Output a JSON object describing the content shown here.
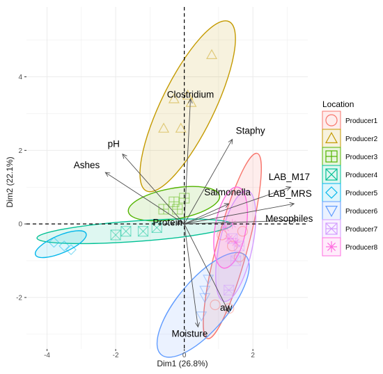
{
  "chart_data": {
    "type": "scatter",
    "subtype": "pca-biplot",
    "title": "",
    "xlabel": "Dim1 (26.8%)",
    "ylabel": "Dim2 (22.1%)",
    "xlim": [
      -4.6,
      3.6
    ],
    "ylim": [
      -3.4,
      5.9
    ],
    "x_ticks": [
      -4,
      -2,
      0,
      2
    ],
    "y_ticks": [
      -2,
      0,
      2,
      4
    ],
    "grid": true,
    "legend": {
      "title": "Location",
      "placement": "right",
      "entries": [
        {
          "name": "Producer1",
          "color": "#F8766D",
          "shape": "circle"
        },
        {
          "name": "Producer2",
          "color": "#C49A00",
          "shape": "triangle"
        },
        {
          "name": "Producer3",
          "color": "#53B400",
          "shape": "square-plus"
        },
        {
          "name": "Producer4",
          "color": "#00C094",
          "shape": "square-x"
        },
        {
          "name": "Producer5",
          "color": "#00B6EB",
          "shape": "diamond"
        },
        {
          "name": "Producer6",
          "color": "#619CFF",
          "shape": "triangle-down"
        },
        {
          "name": "Producer7",
          "color": "#D39CFF",
          "shape": "square-cross"
        },
        {
          "name": "Producer8",
          "color": "#FF6DE0",
          "shape": "asterisk"
        }
      ]
    },
    "variables": [
      {
        "name": "Clostridium",
        "x": 0.18,
        "y": 3.4
      },
      {
        "name": "Staphy",
        "x": 1.4,
        "y": 2.3
      },
      {
        "name": "pH",
        "x": -1.8,
        "y": 1.9
      },
      {
        "name": "Ashes",
        "x": -2.3,
        "y": 1.4
      },
      {
        "name": "Salmonella",
        "x": 1.3,
        "y": 0.55
      },
      {
        "name": "LAB_M17",
        "x": 3.1,
        "y": 1.0
      },
      {
        "name": "LAB_MRS",
        "x": 3.2,
        "y": 0.55
      },
      {
        "name": "Mesophiles",
        "x": 3.3,
        "y": 0.1
      },
      {
        "name": "Protein",
        "x": -0.2,
        "y": 0.05
      },
      {
        "name": "aw",
        "x": 1.3,
        "y": -2.4
      },
      {
        "name": "Moisture",
        "x": 0.4,
        "y": -2.8
      }
    ],
    "groups": [
      {
        "name": "Producer1",
        "cx": 1.4,
        "cy": -0.6,
        "rx": 2.8,
        "ry": 0.42,
        "angle": 75,
        "points": [
          [
            1.1,
            -0.3
          ],
          [
            1.4,
            -0.6
          ],
          [
            1.6,
            -0.9
          ],
          [
            0.9,
            -2.2
          ],
          [
            1.3,
            -2.3
          ],
          [
            1.7,
            -0.2
          ]
        ]
      },
      {
        "name": "Producer2",
        "cx": 0.1,
        "cy": 3.2,
        "rx": 2.75,
        "ry": 0.72,
        "angle": 64,
        "points": [
          [
            0.8,
            4.6
          ],
          [
            -0.3,
            3.4
          ],
          [
            0.1,
            3.5
          ],
          [
            0.2,
            3.3
          ],
          [
            -0.6,
            2.6
          ],
          [
            -0.1,
            2.6
          ]
        ]
      },
      {
        "name": "Producer3",
        "cx": -0.3,
        "cy": 0.55,
        "rx": 1.35,
        "ry": 0.42,
        "angle": 10,
        "points": [
          [
            -0.6,
            0.4
          ],
          [
            -0.3,
            0.6
          ],
          [
            0.0,
            0.7
          ],
          [
            -0.2,
            0.4
          ]
        ]
      },
      {
        "name": "Producer4",
        "cx": -1.45,
        "cy": -0.2,
        "rx": 2.85,
        "ry": 0.28,
        "angle": 4,
        "points": [
          [
            -1.7,
            -0.2
          ],
          [
            -1.2,
            -0.2
          ],
          [
            -0.8,
            -0.1
          ],
          [
            -2.0,
            -0.3
          ]
        ]
      },
      {
        "name": "Producer5",
        "cx": -3.6,
        "cy": -0.55,
        "rx": 0.8,
        "ry": 0.24,
        "angle": 23,
        "points": [
          [
            -3.8,
            -0.5
          ],
          [
            -3.5,
            -0.6
          ],
          [
            -3.3,
            -0.7
          ]
        ]
      },
      {
        "name": "Producer6",
        "cx": 0.55,
        "cy": -2.2,
        "rx": 1.9,
        "ry": 0.68,
        "angle": 50,
        "points": [
          [
            0.7,
            -1.5
          ],
          [
            0.6,
            -1.8
          ],
          [
            0.6,
            -2.0
          ],
          [
            0.5,
            -2.5
          ]
        ]
      },
      {
        "name": "Producer7",
        "cx": 1.5,
        "cy": -0.6,
        "rx": 1.65,
        "ry": 0.45,
        "angle": 78,
        "points": [
          [
            1.4,
            -0.4
          ],
          [
            1.6,
            -0.6
          ],
          [
            1.5,
            -1.0
          ],
          [
            1.3,
            -1.8
          ]
        ]
      },
      {
        "name": "Producer8",
        "cx": 1.35,
        "cy": -0.1,
        "rx": 1.2,
        "ry": 0.42,
        "angle": 80,
        "points": [
          [
            1.2,
            -0.1
          ],
          [
            1.4,
            0.0
          ],
          [
            1.3,
            -0.4
          ],
          [
            1.5,
            -0.5
          ]
        ]
      }
    ]
  }
}
